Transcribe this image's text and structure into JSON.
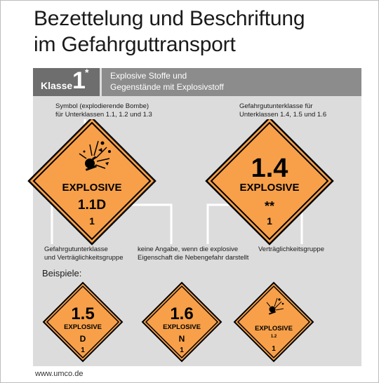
{
  "title": {
    "line1": "Bezettelung und Beschriftung",
    "line2": "im Gefahrguttransport"
  },
  "header": {
    "klasse_label": "Klasse",
    "klasse_number": "1",
    "klasse_star": "*",
    "desc_line1": "Explosive Stoffe und",
    "desc_line2": "Gegenstände mit Explosivstoff"
  },
  "notes": {
    "symbol_line1": "Symbol (explodierende Bombe)",
    "symbol_line2": "für Unterklassen 1.1, 1.2 und 1.3",
    "subclass_line1": "Gefahrgutunterklasse für",
    "subclass_line2": "Unterklassen 1.4, 1.5 und 1.6",
    "vg_line1": "Gefahrgutunterklasse",
    "vg_line2": "und Verträglichkeitsgruppe",
    "keine_line1": "keine Angabe, wenn die explosive",
    "keine_line2": "Eigenschaft die Nebengefahr darstellt",
    "vtg": "Verträglichkeitsgruppe"
  },
  "labels": {
    "main_left": {
      "word": "EXPLOSIVE",
      "code": "1.1D",
      "class_no": "1"
    },
    "main_right": {
      "big": "1.4",
      "word": "EXPLOSIVE",
      "stars": "**",
      "class_no": "1"
    }
  },
  "beispiele_label": "Beispiele:",
  "examples": [
    {
      "big": "1.5",
      "word": "EXPLOSIVE",
      "letter": "D",
      "class_no": "1"
    },
    {
      "big": "1.6",
      "word": "EXPLOSIVE",
      "letter": "N",
      "class_no": "1"
    },
    {
      "word": "EXPLOSIVE",
      "sub": "1.2",
      "class_no": "1"
    }
  ],
  "footer": "www.umco.de",
  "colors": {
    "orange": "#f7a049",
    "panel": "#dcdcdc",
    "header_dark": "#6e6e6e",
    "header_light": "#8c8c8c"
  }
}
